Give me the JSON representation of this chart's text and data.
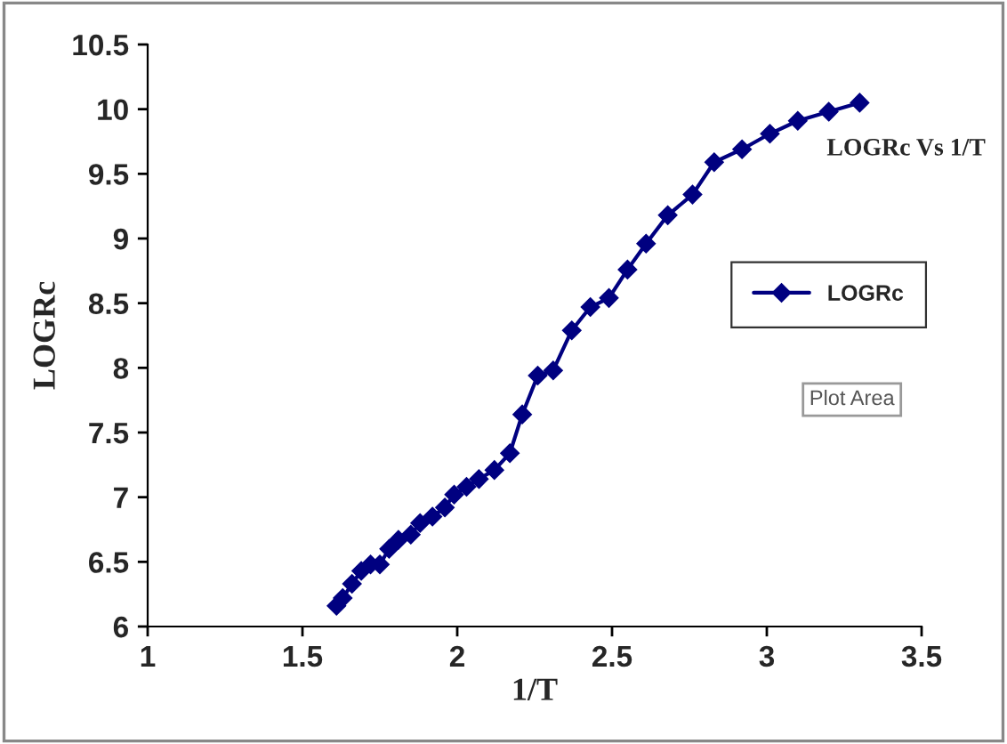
{
  "chart_data": {
    "type": "line",
    "title": "LOGRc Vs 1/T",
    "xlabel": "1/T",
    "ylabel": "LOGRc",
    "x": [
      1.61,
      1.63,
      1.66,
      1.69,
      1.72,
      1.75,
      1.78,
      1.81,
      1.85,
      1.88,
      1.92,
      1.96,
      1.99,
      2.03,
      2.07,
      2.12,
      2.17,
      2.21,
      2.26,
      2.31,
      2.37,
      2.43,
      2.49,
      2.55,
      2.61,
      2.68,
      2.76,
      2.83,
      2.92,
      3.01,
      3.1,
      3.2,
      3.3
    ],
    "series": [
      {
        "name": "LOGRc",
        "color": "#000080",
        "values": [
          6.16,
          6.22,
          6.33,
          6.43,
          6.48,
          6.48,
          6.6,
          6.67,
          6.71,
          6.8,
          6.85,
          6.92,
          7.02,
          7.08,
          7.14,
          7.21,
          7.34,
          7.64,
          7.94,
          7.98,
          8.29,
          8.47,
          8.54,
          8.76,
          8.96,
          9.18,
          9.34,
          9.59,
          9.69,
          9.81,
          9.91,
          9.98,
          10.05
        ]
      }
    ],
    "xlim": [
      1,
      3.5
    ],
    "xticks": [
      1,
      1.5,
      2,
      2.5,
      3,
      3.5
    ],
    "ylim": [
      6,
      10.5
    ],
    "yticks": [
      6,
      6.5,
      7,
      7.5,
      8,
      8.5,
      9,
      9.5,
      10,
      10.5
    ],
    "marker": "diamond",
    "line_style": "solid",
    "grid": false,
    "legend": "right",
    "annotations": [
      "Plot Area"
    ]
  }
}
